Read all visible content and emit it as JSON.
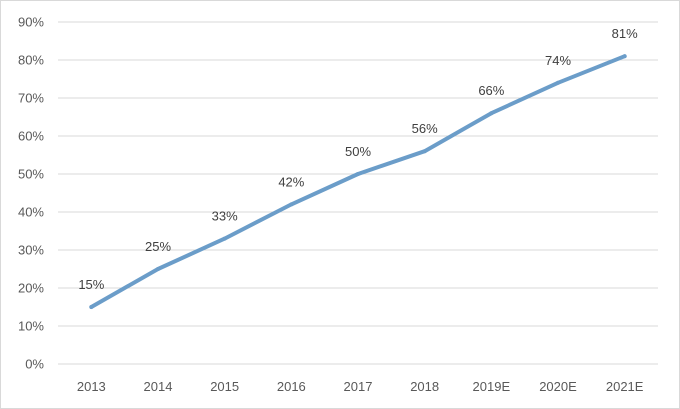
{
  "chart_data": {
    "type": "line",
    "title": "",
    "xlabel": "",
    "ylabel": "",
    "categories": [
      "2013",
      "2014",
      "2015",
      "2016",
      "2017",
      "2018",
      "2019E",
      "2020E",
      "2021E"
    ],
    "series": [
      {
        "values": [
          15,
          25,
          33,
          42,
          50,
          56,
          66,
          74,
          81
        ],
        "data_labels": [
          "15%",
          "25%",
          "33%",
          "42%",
          "50%",
          "56%",
          "66%",
          "74%",
          "81%"
        ],
        "color": "#6b9dc9"
      }
    ],
    "ylim": [
      0,
      90
    ],
    "y_ticks": [
      0,
      10,
      20,
      30,
      40,
      50,
      60,
      70,
      80,
      90
    ],
    "y_tick_labels": [
      "0%",
      "10%",
      "20%",
      "30%",
      "40%",
      "50%",
      "60%",
      "70%",
      "80%",
      "90%"
    ],
    "grid": true,
    "legend": "none",
    "gridline_color": "#d9d9d9",
    "text_color": "#595959"
  }
}
